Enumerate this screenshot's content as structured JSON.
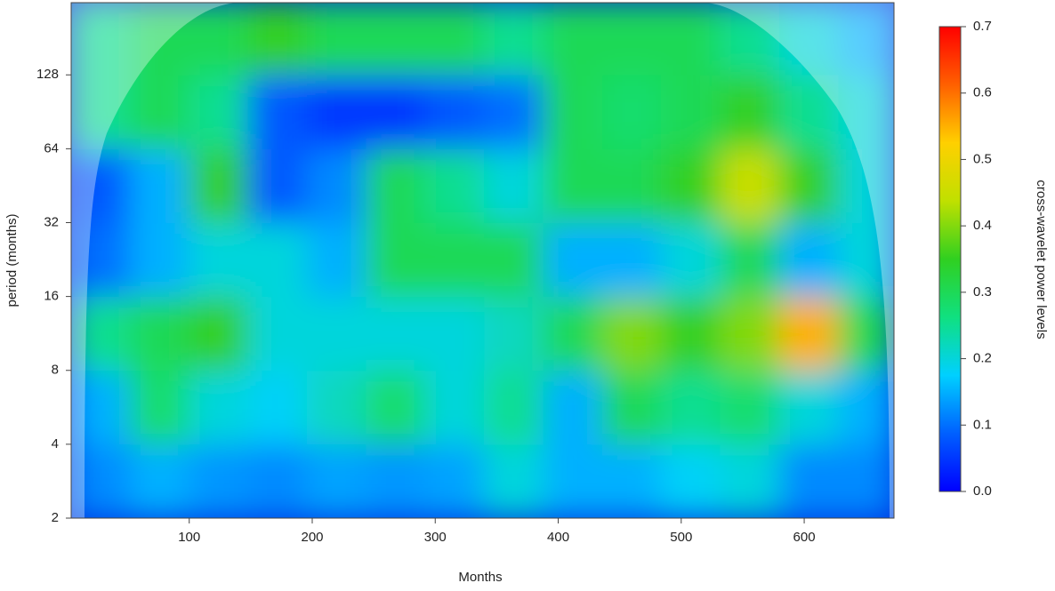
{
  "chart_data": {
    "type": "heatmap",
    "x_label": "Months",
    "y_label": "period (months)",
    "colorbar_label": "cross-wavelet power levels",
    "xlim": [
      4,
      673
    ],
    "xticks": [
      100,
      200,
      300,
      400,
      500,
      600
    ],
    "ylim": [
      2,
      252
    ],
    "y_log2": true,
    "yticks": [
      2,
      4,
      8,
      16,
      32,
      64,
      128
    ],
    "x_bins": [
      4,
      52,
      100,
      148,
      196,
      244,
      292,
      340,
      388,
      436,
      484,
      532,
      580,
      628,
      673
    ],
    "y_bins": [
      2,
      4,
      8,
      16,
      32,
      64,
      128,
      252
    ],
    "z": [
      [
        0.12,
        0.15,
        0.13,
        0.12,
        0.14,
        0.13,
        0.14,
        0.2,
        0.15,
        0.15,
        0.18,
        0.2,
        0.12,
        0.12
      ],
      [
        0.15,
        0.28,
        0.2,
        0.18,
        0.22,
        0.28,
        0.2,
        0.25,
        0.15,
        0.3,
        0.25,
        0.28,
        0.2,
        0.15
      ],
      [
        0.25,
        0.3,
        0.35,
        0.2,
        0.2,
        0.2,
        0.2,
        0.22,
        0.3,
        0.4,
        0.35,
        0.4,
        0.55,
        0.3
      ],
      [
        0.1,
        0.15,
        0.2,
        0.2,
        0.15,
        0.3,
        0.3,
        0.3,
        0.15,
        0.15,
        0.2,
        0.3,
        0.15,
        0.2
      ],
      [
        0.08,
        0.15,
        0.35,
        0.08,
        0.12,
        0.3,
        0.25,
        0.2,
        0.3,
        0.3,
        0.35,
        0.45,
        0.35,
        0.2
      ],
      [
        0.25,
        0.3,
        0.25,
        0.08,
        0.05,
        0.05,
        0.08,
        0.1,
        0.3,
        0.28,
        0.3,
        0.35,
        0.25,
        0.2
      ],
      [
        0.25,
        0.3,
        0.3,
        0.35,
        0.3,
        0.3,
        0.3,
        0.25,
        0.3,
        0.3,
        0.3,
        0.25,
        0.2,
        0.15
      ]
    ],
    "zlim": [
      0,
      0.7
    ],
    "zticks": [
      {
        "value": 0,
        "label": "0.0"
      },
      0.1,
      0.2,
      0.3,
      0.4,
      0.5,
      0.6,
      0.7
    ],
    "colorscale": [
      "#0000ff",
      "#0060ff",
      "#00d0ff",
      "#10e080",
      "#30d020",
      "#c0e000",
      "#ffd000",
      "#ff6000",
      "#ff0000"
    ]
  }
}
